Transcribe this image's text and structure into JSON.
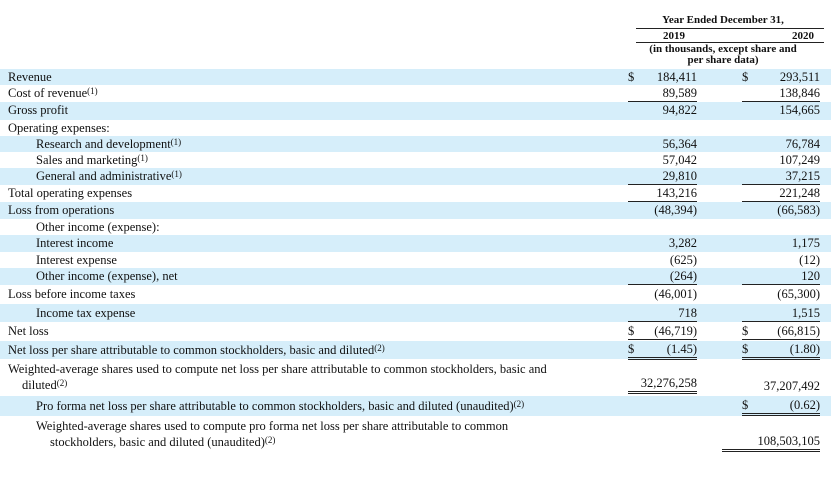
{
  "header": {
    "title": "Year Ended December 31,",
    "year_1": "2019",
    "year_2": "2020",
    "note_line_1": "(in thousands, except share and",
    "note_line_2": "per share data)"
  },
  "rows": {
    "revenue": {
      "label": "Revenue",
      "sym1": "$",
      "v2019": "184,411",
      "sym2": "$",
      "v2020": "293,511"
    },
    "cost_of_revenue": {
      "label": "Cost of revenue",
      "footnote": "(1)",
      "v2019": "89,589",
      "v2020": "138,846"
    },
    "gross_profit": {
      "label": "Gross profit",
      "v2019": "94,822",
      "v2020": "154,665"
    },
    "operating_expenses": {
      "label": "Operating expenses:"
    },
    "research_development": {
      "label": "Research and development",
      "footnote": "(1)",
      "v2019": "56,364",
      "v2020": "76,784"
    },
    "sales_marketing": {
      "label": "Sales and marketing",
      "footnote": "(1)",
      "v2019": "57,042",
      "v2020": "107,249"
    },
    "general_admin": {
      "label": "General and administrative",
      "footnote": "(1)",
      "v2019": "29,810",
      "v2020": "37,215"
    },
    "total_operating_expenses": {
      "label": "Total operating expenses",
      "v2019": "143,216",
      "v2020": "221,248"
    },
    "loss_from_operations": {
      "label": "Loss from operations",
      "v2019": "(48,394)",
      "v2020": "(66,583)"
    },
    "other_income_expense_header": {
      "label": "Other income (expense):"
    },
    "interest_income": {
      "label": "Interest income",
      "v2019": "3,282",
      "v2020": "1,175"
    },
    "interest_expense": {
      "label": "Interest expense",
      "v2019": "(625)",
      "v2020": "(12)"
    },
    "other_income_net": {
      "label": "Other income (expense), net",
      "v2019": "(264)",
      "v2020": "120"
    },
    "loss_before_taxes": {
      "label": "Loss before income taxes",
      "v2019": "(46,001)",
      "v2020": "(65,300)"
    },
    "income_tax_expense": {
      "label": "Income tax expense",
      "v2019": "718",
      "v2020": "1,515"
    },
    "net_loss": {
      "label": "Net loss",
      "sym1": "$",
      "v2019": "(46,719)",
      "sym2": "$",
      "v2020": "(66,815)"
    },
    "net_loss_per_share": {
      "label": "Net loss per share attributable to common stockholders, basic and diluted",
      "footnote": "(2)",
      "sym1": "$",
      "v2019": "(1.45)",
      "sym2": "$",
      "v2020": "(1.80)"
    },
    "weighted_avg_shares": {
      "label_line_1": "Weighted-average shares used to compute net loss per share attributable to common stockholders, basic and",
      "label_line_2": "diluted",
      "footnote": "(2)",
      "v2019": "32,276,258",
      "v2020": "37,207,492"
    },
    "pro_forma_net_loss_per_share": {
      "label": "Pro forma net loss per share attributable to common stockholders, basic and diluted (unaudited)",
      "footnote": "(2)",
      "sym2": "$",
      "v2020": "(0.62)"
    },
    "pro_forma_weighted_avg_shares": {
      "label_line_1": "Weighted-average shares used to compute pro forma net loss per share attributable to common",
      "label_line_2": "stockholders, basic and diluted (unaudited)",
      "footnote": "(2)",
      "v2020": "108,503,105"
    }
  }
}
